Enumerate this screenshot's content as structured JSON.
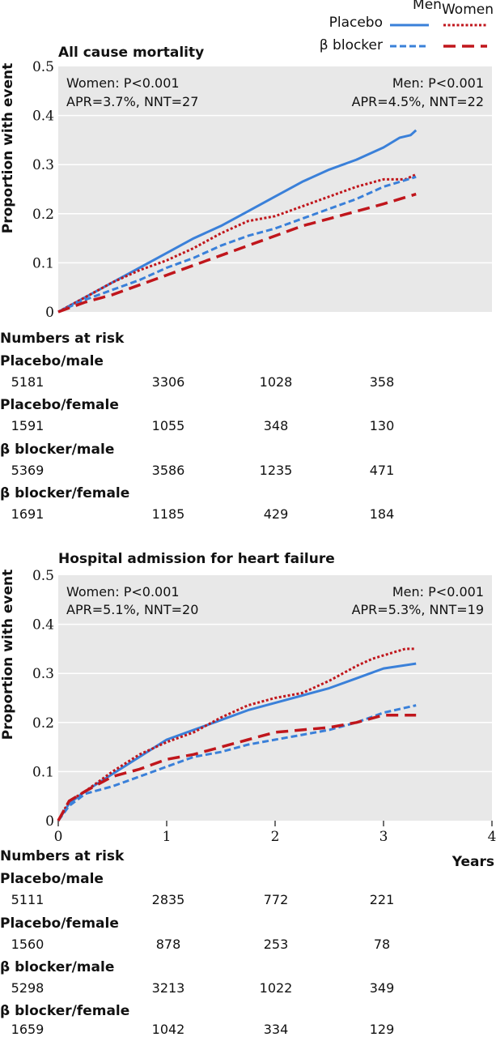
{
  "legend": {
    "col_men": "Men",
    "col_women": "Women",
    "row_placebo": "Placebo",
    "row_bblocker": "β blocker"
  },
  "colors": {
    "men": "#3a80d9",
    "women": "#c0161c",
    "panel_bg": "#e8e8e8",
    "grid": "#ffffff"
  },
  "chart_data": [
    {
      "type": "line",
      "title": "All cause mortality",
      "ylabel": "Proportion with event",
      "xlabel": "",
      "xlim": [
        0,
        4
      ],
      "ylim": [
        0,
        0.5
      ],
      "yticks": [
        "0",
        "0.1",
        "0.2",
        "0.3",
        "0.4",
        "0.5"
      ],
      "xticks": [],
      "grid": true,
      "annotations": {
        "women_p": "Women: P<0.001",
        "women_apr": "APR=3.7%, NNT=27",
        "men_p": "Men: P<0.001",
        "men_apr": "APR=4.5%, NNT=22"
      },
      "series": [
        {
          "group": "men",
          "treatment": "placebo",
          "style": "solid",
          "x": [
            0,
            0.25,
            0.5,
            0.75,
            1,
            1.25,
            1.5,
            1.75,
            2,
            2.25,
            2.5,
            2.75,
            3,
            3.15,
            3.25,
            3.3
          ],
          "y": [
            0,
            0.03,
            0.06,
            0.09,
            0.12,
            0.15,
            0.175,
            0.205,
            0.235,
            0.265,
            0.29,
            0.31,
            0.335,
            0.355,
            0.36,
            0.37
          ]
        },
        {
          "group": "women",
          "treatment": "placebo",
          "style": "dotted",
          "x": [
            0,
            0.25,
            0.5,
            0.75,
            1,
            1.25,
            1.5,
            1.75,
            2,
            2.25,
            2.5,
            2.75,
            3,
            3.2,
            3.3
          ],
          "y": [
            0,
            0.03,
            0.06,
            0.085,
            0.105,
            0.13,
            0.16,
            0.185,
            0.195,
            0.215,
            0.235,
            0.255,
            0.27,
            0.27,
            0.28
          ]
        },
        {
          "group": "men",
          "treatment": "bblocker",
          "style": "dashed",
          "x": [
            0,
            0.25,
            0.5,
            0.75,
            1,
            1.25,
            1.5,
            1.75,
            2,
            2.25,
            2.5,
            2.75,
            3,
            3.3
          ],
          "y": [
            0,
            0.025,
            0.045,
            0.065,
            0.09,
            0.11,
            0.135,
            0.155,
            0.17,
            0.19,
            0.21,
            0.23,
            0.255,
            0.275
          ]
        },
        {
          "group": "women",
          "treatment": "bblocker",
          "style": "longdash",
          "x": [
            0,
            0.25,
            0.5,
            0.75,
            1,
            1.25,
            1.5,
            1.75,
            2,
            2.25,
            2.5,
            2.75,
            3,
            3.3
          ],
          "y": [
            0,
            0.02,
            0.035,
            0.055,
            0.075,
            0.095,
            0.115,
            0.135,
            0.155,
            0.175,
            0.19,
            0.205,
            0.22,
            0.24
          ]
        }
      ],
      "numbers_at_risk": {
        "title": "Numbers at risk",
        "rows": [
          {
            "label": "Placebo/male",
            "values": [
              "5181",
              "3306",
              "1028",
              "358"
            ]
          },
          {
            "label": "Placebo/female",
            "values": [
              "1591",
              "1055",
              "348",
              "130"
            ]
          },
          {
            "label": "β blocker/male",
            "values": [
              "5369",
              "3586",
              "1235",
              "471"
            ]
          },
          {
            "label": "β blocker/female",
            "values": [
              "1691",
              "1185",
              "429",
              "184"
            ]
          }
        ]
      }
    },
    {
      "type": "line",
      "title": "Hospital admission for heart failure",
      "ylabel": "Proportion with event",
      "xlabel": "Years",
      "xlim": [
        0,
        4
      ],
      "ylim": [
        0,
        0.5
      ],
      "yticks": [
        "0",
        "0.1",
        "0.2",
        "0.3",
        "0.4",
        "0.5"
      ],
      "xticks": [
        "0",
        "1",
        "2",
        "3",
        "4"
      ],
      "grid": true,
      "annotations": {
        "women_p": "Women: P<0.001",
        "women_apr": "APR=5.1%, NNT=20",
        "men_p": "Men: P<0.001",
        "men_apr": "APR=5.3%, NNT=19"
      },
      "series": [
        {
          "group": "men",
          "treatment": "placebo",
          "style": "solid",
          "x": [
            0,
            0.1,
            0.25,
            0.5,
            0.75,
            1,
            1.25,
            1.5,
            1.75,
            2,
            2.25,
            2.5,
            2.75,
            3,
            3.3
          ],
          "y": [
            0,
            0.035,
            0.06,
            0.095,
            0.13,
            0.165,
            0.185,
            0.205,
            0.225,
            0.24,
            0.255,
            0.27,
            0.29,
            0.31,
            0.32
          ]
        },
        {
          "group": "women",
          "treatment": "placebo",
          "style": "dotted",
          "x": [
            0,
            0.1,
            0.25,
            0.5,
            0.75,
            1,
            1.25,
            1.5,
            1.75,
            2,
            2.25,
            2.5,
            2.75,
            2.9,
            3.2,
            3.3
          ],
          "y": [
            0,
            0.04,
            0.06,
            0.1,
            0.135,
            0.16,
            0.18,
            0.21,
            0.235,
            0.25,
            0.26,
            0.285,
            0.315,
            0.33,
            0.35,
            0.35
          ]
        },
        {
          "group": "men",
          "treatment": "bblocker",
          "style": "dashed",
          "x": [
            0,
            0.1,
            0.25,
            0.5,
            0.75,
            1,
            1.25,
            1.5,
            1.75,
            2,
            2.25,
            2.5,
            2.75,
            3,
            3.3
          ],
          "y": [
            0,
            0.03,
            0.055,
            0.07,
            0.09,
            0.11,
            0.13,
            0.14,
            0.155,
            0.165,
            0.175,
            0.185,
            0.2,
            0.22,
            0.235
          ]
        },
        {
          "group": "women",
          "treatment": "bblocker",
          "style": "longdash",
          "x": [
            0,
            0.1,
            0.25,
            0.5,
            0.75,
            1,
            1.25,
            1.5,
            1.75,
            2,
            2.25,
            2.5,
            2.75,
            3,
            3.3
          ],
          "y": [
            0,
            0.04,
            0.06,
            0.09,
            0.105,
            0.125,
            0.135,
            0.15,
            0.165,
            0.18,
            0.185,
            0.19,
            0.2,
            0.215,
            0.215
          ]
        }
      ],
      "numbers_at_risk": {
        "title": "Numbers at risk",
        "rows": [
          {
            "label": "Placebo/male",
            "values": [
              "5111",
              "2835",
              "772",
              "221"
            ]
          },
          {
            "label": "Placebo/female",
            "values": [
              "1560",
              "878",
              "253",
              "78"
            ]
          },
          {
            "label": "β blocker/male",
            "values": [
              "5298",
              "3213",
              "1022",
              "349"
            ]
          },
          {
            "label": "β blocker/female",
            "values": [
              "1659",
              "1042",
              "334",
              "129"
            ]
          }
        ]
      }
    }
  ]
}
